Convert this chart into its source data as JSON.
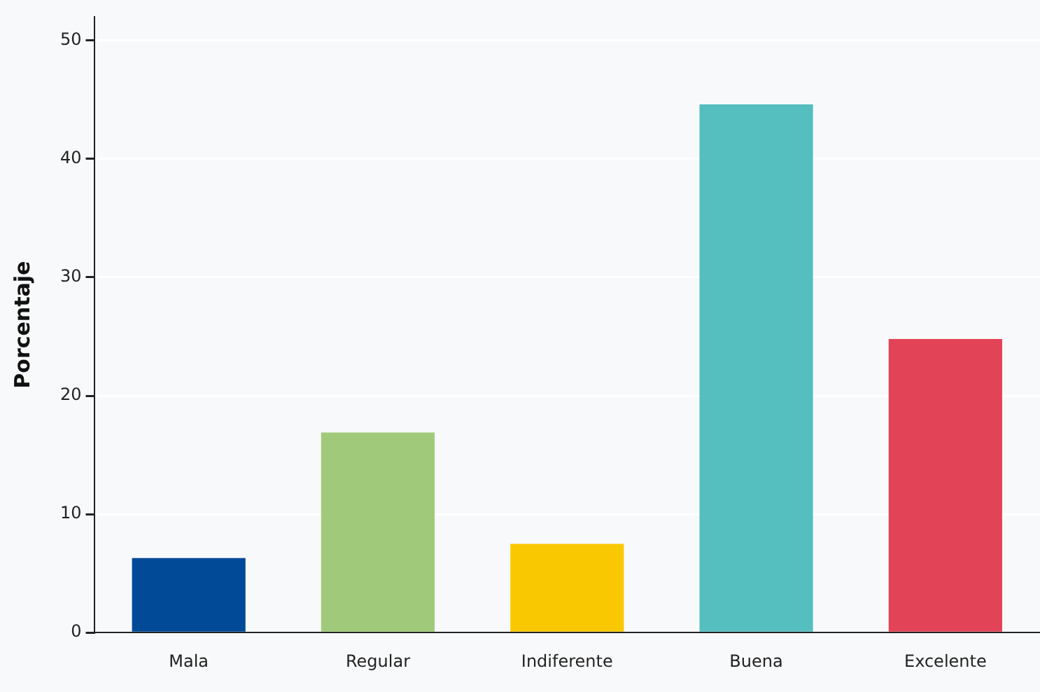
{
  "chart_data": {
    "type": "bar",
    "ylabel": "Porcentaje",
    "categories": [
      "Mala",
      "Regular",
      "Indiferente",
      "Buena",
      "Excelente"
    ],
    "values": [
      6.3,
      16.9,
      7.5,
      44.6,
      24.8
    ],
    "colors": [
      "#004a98",
      "#a0ca7a",
      "#fac800",
      "#55bebe",
      "#e34356"
    ],
    "ylim": [
      0,
      52
    ],
    "yticks": [
      0,
      10,
      20,
      30,
      40,
      50
    ],
    "grid": "y"
  }
}
